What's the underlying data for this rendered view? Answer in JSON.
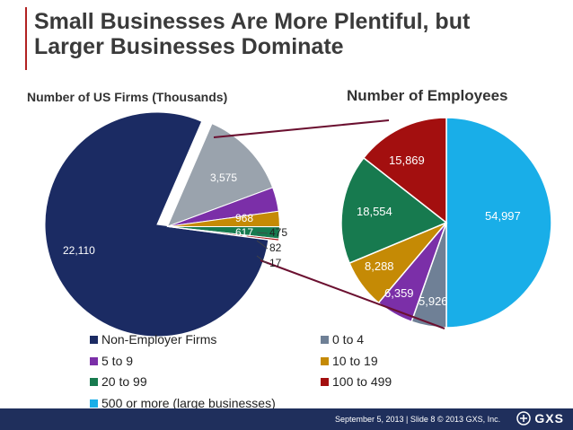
{
  "header": {
    "title_line1": "Small Businesses Are More Plentiful, but",
    "title_line2": "Larger Businesses Dominate"
  },
  "chart_data": [
    {
      "type": "pie",
      "title": "Number of US Firms (Thousands)",
      "categories": [
        "Non-Employer Firms",
        "0 to 4",
        "5 to 9",
        "10 to 19",
        "20 to 99",
        "100 to 499",
        "500 or more (large businesses)"
      ],
      "values": [
        22110,
        3575,
        968,
        617,
        475,
        82,
        17
      ],
      "labels": [
        "22,110",
        "3,575",
        "968",
        "617",
        "475",
        "82",
        "17"
      ],
      "colors": [
        "#1b2b63",
        "#9aa3ad",
        "#7b2fa8",
        "#c58a05",
        "#177a4f",
        "#a30f0f",
        "#19aee8"
      ]
    },
    {
      "type": "pie",
      "title": "Number of Employees",
      "categories": [
        "0 to 4",
        "5 to 9",
        "10 to 19",
        "20 to 99",
        "100 to 499",
        "500 or more (large businesses)"
      ],
      "values": [
        5926,
        6359,
        8288,
        18554,
        15869,
        54997
      ],
      "labels": [
        "5,926",
        "6,359",
        "8,288",
        "18,554",
        "15,869",
        "54,997"
      ],
      "colors": [
        "#6f8096",
        "#7b2fa8",
        "#c58a05",
        "#177a4f",
        "#a30f0f",
        "#19aee8"
      ]
    }
  ],
  "legend": [
    {
      "label": "Non-Employer Firms",
      "color": "#1b2b63"
    },
    {
      "label": "0 to 4",
      "color": "#6f8096"
    },
    {
      "label": "5 to 9",
      "color": "#7b2fa8"
    },
    {
      "label": "10 to 19",
      "color": "#c58a05"
    },
    {
      "label": "20 to 99",
      "color": "#177a4f"
    },
    {
      "label": "100 to 499",
      "color": "#a30f0f"
    },
    {
      "label": "500 or more (large businesses)",
      "color": "#19aee8"
    }
  ],
  "footer": {
    "date_text": "September 5, 2013  |  Slide 8  © 2013 GXS, Inc.",
    "brand": "GXS"
  }
}
